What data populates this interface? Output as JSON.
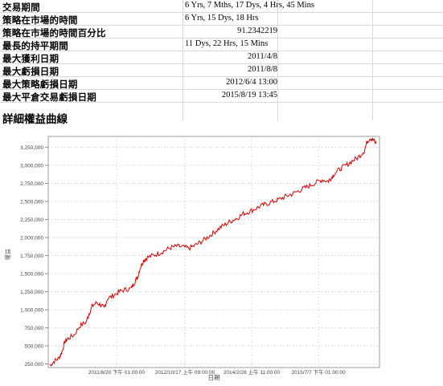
{
  "stats": [
    {
      "label": "交易期間",
      "value": "6 Yrs, 7 Mths, 17 Dys, 4 Hrs, 45 Mins",
      "align": "left"
    },
    {
      "label": "策略在市場的時間",
      "value": "6 Yrs, 15 Dys, 18 Hrs",
      "align": "left"
    },
    {
      "label": "策略在市場的時間百分比",
      "value": "91.2342219",
      "align": "right"
    },
    {
      "label": "最長的持平期間",
      "value": "11 Dys, 22 Hrs, 15 Mins",
      "align": "left"
    },
    {
      "label": "最大獲利日期",
      "value": "2011/4/8",
      "align": "right"
    },
    {
      "label": "最大虧損日期",
      "value": "2011/8/8",
      "align": "right"
    },
    {
      "label": "最大策略虧損日期",
      "value": "2012/6/4 13:00",
      "align": "right"
    },
    {
      "label": "最大平倉交易虧損日期",
      "value": "2015/8/19 13:45",
      "align": "right"
    }
  ],
  "section_title": "詳細權益曲線",
  "chart_data": {
    "type": "line",
    "ylabel": "權益",
    "xlabel": "日期",
    "ylim": [
      200000,
      3400000
    ],
    "y_ticks": [
      250000,
      500000,
      750000,
      1000000,
      1250000,
      1500000,
      1750000,
      2000000,
      2250000,
      2500000,
      2750000,
      3000000,
      3250000
    ],
    "y_tick_labels": [
      "250,000",
      "500,000",
      "750,000",
      "1,000,000",
      "1,250,000",
      "1,500,000",
      "1,750,000",
      "2,000,000",
      "2,250,000",
      "2,500,000",
      "2,750,000",
      "3,000,000",
      "3,250,000"
    ],
    "x_tick_labels": [
      "2011/6/20 下午 01:00:00",
      "2012/10/17 上午 09:00:00",
      "2014/2/26 上午 11:00:00",
      "2015/7/7 下午 01:00:00"
    ],
    "grid": true,
    "line_color": "#dd0000",
    "series": [
      {
        "points": [
          [
            0,
            230000
          ],
          [
            1.5,
            290000
          ],
          [
            3,
            330000
          ],
          [
            4,
            420000
          ],
          [
            5,
            560000
          ],
          [
            6,
            600000
          ],
          [
            8,
            650000
          ],
          [
            10,
            780000
          ],
          [
            12,
            830000
          ],
          [
            13,
            950000
          ],
          [
            14,
            1050000
          ],
          [
            15.5,
            1100000
          ],
          [
            17,
            1060000
          ],
          [
            18,
            1020000
          ],
          [
            19,
            1150000
          ],
          [
            21,
            1200000
          ],
          [
            23,
            1250000
          ],
          [
            25,
            1280000
          ],
          [
            27,
            1300000
          ],
          [
            28,
            1380000
          ],
          [
            29,
            1450000
          ],
          [
            30,
            1600000
          ],
          [
            31,
            1680000
          ],
          [
            32,
            1720000
          ],
          [
            34,
            1750000
          ],
          [
            36,
            1780000
          ],
          [
            38,
            1820000
          ],
          [
            40,
            1860000
          ],
          [
            42,
            1880000
          ],
          [
            44,
            1870000
          ],
          [
            46,
            1850000
          ],
          [
            48,
            1890000
          ],
          [
            50,
            1940000
          ],
          [
            52,
            2000000
          ],
          [
            54,
            2060000
          ],
          [
            56,
            2130000
          ],
          [
            58,
            2180000
          ],
          [
            60,
            2230000
          ],
          [
            62,
            2270000
          ],
          [
            64,
            2330000
          ],
          [
            66,
            2360000
          ],
          [
            68,
            2400000
          ],
          [
            70,
            2440000
          ],
          [
            72,
            2470000
          ],
          [
            74,
            2500000
          ],
          [
            76,
            2530000
          ],
          [
            78,
            2570000
          ],
          [
            80,
            2600000
          ],
          [
            82,
            2640000
          ],
          [
            84,
            2680000
          ],
          [
            86,
            2720000
          ],
          [
            88,
            2760000
          ],
          [
            90,
            2800000
          ],
          [
            92,
            2780000
          ],
          [
            93,
            2820000
          ],
          [
            94,
            2880000
          ],
          [
            96,
            2950000
          ],
          [
            98,
            3000000
          ],
          [
            100,
            3060000
          ],
          [
            102,
            3110000
          ],
          [
            104,
            3200000
          ],
          [
            105,
            3330000
          ],
          [
            106,
            3380000
          ],
          [
            107,
            3350000
          ],
          [
            108,
            3300000
          ]
        ]
      }
    ]
  }
}
